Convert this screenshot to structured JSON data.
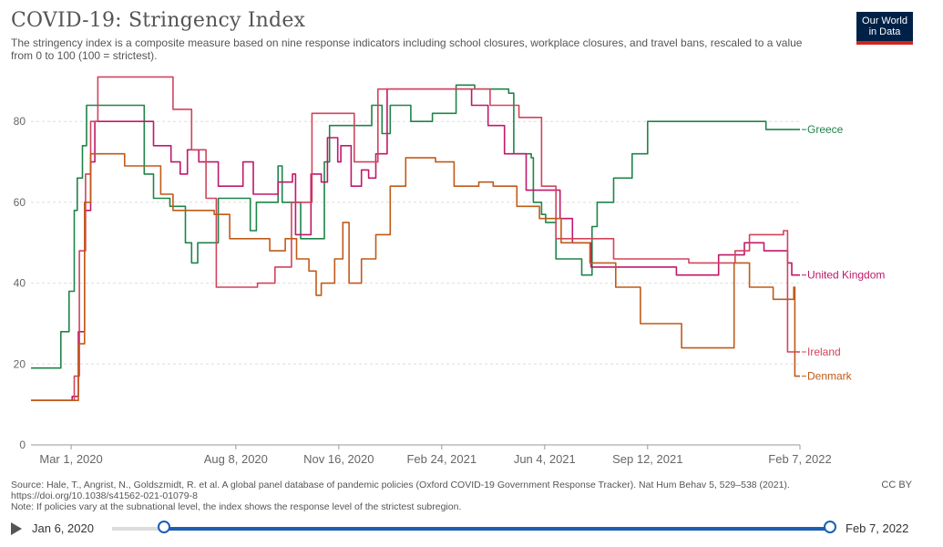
{
  "header": {
    "title": "COVID-19: Stringency Index",
    "subtitle": "The stringency index is a composite measure based on nine response indicators including school closures, workplace closures, and travel bans, rescaled to a value from 0 to 100 (100 = strictest).",
    "logo_line1": "Our World",
    "logo_line2": "in Data"
  },
  "chart_data": {
    "type": "line",
    "title": "COVID-19: Stringency Index",
    "xlabel": "",
    "ylabel": "",
    "x_ticks": [
      "Mar 1, 2020",
      "Aug 8, 2020",
      "Nov 16, 2020",
      "Feb 24, 2021",
      "Jun 4, 2021",
      "Sep 12, 2021",
      "Feb 7, 2022"
    ],
    "y_ticks": [
      0,
      20,
      40,
      60,
      80
    ],
    "xlim": [
      "2020-01-22",
      "2022-02-07"
    ],
    "ylim": [
      0,
      92
    ],
    "grid": "horizontal dashed",
    "legend": "inline labels at line ends (right)",
    "colors": {
      "Greece": "#1e8449",
      "United Kingdom": "#c0186a",
      "Ireland": "#d0445c",
      "Denmark": "#c05a18"
    },
    "series": [
      {
        "name": "Greece",
        "points": [
          [
            "2020-01-22",
            19
          ],
          [
            "2020-02-10",
            19
          ],
          [
            "2020-02-20",
            28
          ],
          [
            "2020-02-28",
            38
          ],
          [
            "2020-03-04",
            58
          ],
          [
            "2020-03-07",
            66
          ],
          [
            "2020-03-12",
            74
          ],
          [
            "2020-03-16",
            84
          ],
          [
            "2020-05-04",
            84
          ],
          [
            "2020-05-11",
            67
          ],
          [
            "2020-05-20",
            61
          ],
          [
            "2020-06-05",
            59
          ],
          [
            "2020-06-20",
            50
          ],
          [
            "2020-06-26",
            45
          ],
          [
            "2020-07-02",
            50
          ],
          [
            "2020-07-17",
            50
          ],
          [
            "2020-07-22",
            61
          ],
          [
            "2020-08-18",
            61
          ],
          [
            "2020-08-22",
            53
          ],
          [
            "2020-08-28",
            60
          ],
          [
            "2020-09-18",
            69
          ],
          [
            "2020-09-22",
            60
          ],
          [
            "2020-10-10",
            51
          ],
          [
            "2020-10-28",
            51
          ],
          [
            "2020-11-02",
            70
          ],
          [
            "2020-11-07",
            79
          ],
          [
            "2020-12-18",
            84
          ],
          [
            "2020-12-28",
            77
          ],
          [
            "2021-01-05",
            84
          ],
          [
            "2021-01-25",
            80
          ],
          [
            "2021-02-15",
            82
          ],
          [
            "2021-03-10",
            89
          ],
          [
            "2021-03-28",
            88
          ],
          [
            "2021-04-30",
            87
          ],
          [
            "2021-05-05",
            72
          ],
          [
            "2021-05-22",
            71
          ],
          [
            "2021-05-24",
            60
          ],
          [
            "2021-06-01",
            57
          ],
          [
            "2021-06-05",
            55
          ],
          [
            "2021-06-15",
            46
          ],
          [
            "2021-07-08",
            46
          ],
          [
            "2021-07-10",
            42
          ],
          [
            "2021-07-20",
            54
          ],
          [
            "2021-07-25",
            60
          ],
          [
            "2021-08-10",
            66
          ],
          [
            "2021-08-28",
            72
          ],
          [
            "2021-09-12",
            80
          ],
          [
            "2022-01-01",
            80
          ],
          [
            "2022-01-05",
            78
          ],
          [
            "2022-02-07",
            78
          ]
        ]
      },
      {
        "name": "United Kingdom",
        "points": [
          [
            "2020-01-22",
            11
          ],
          [
            "2020-02-20",
            11
          ],
          [
            "2020-03-02",
            12
          ],
          [
            "2020-03-08",
            28
          ],
          [
            "2020-03-14",
            58
          ],
          [
            "2020-03-20",
            70
          ],
          [
            "2020-03-24",
            80
          ],
          [
            "2020-05-13",
            80
          ],
          [
            "2020-05-20",
            74
          ],
          [
            "2020-06-06",
            70
          ],
          [
            "2020-06-15",
            67
          ],
          [
            "2020-06-22",
            73
          ],
          [
            "2020-07-03",
            70
          ],
          [
            "2020-07-22",
            64
          ],
          [
            "2020-08-15",
            70
          ],
          [
            "2020-08-25",
            62
          ],
          [
            "2020-09-05",
            62
          ],
          [
            "2020-09-18",
            65
          ],
          [
            "2020-10-02",
            67
          ],
          [
            "2020-10-05",
            52
          ],
          [
            "2020-10-20",
            67
          ],
          [
            "2020-10-30",
            65
          ],
          [
            "2020-11-05",
            76
          ],
          [
            "2020-11-15",
            70
          ],
          [
            "2020-11-18",
            74
          ],
          [
            "2020-11-28",
            64
          ],
          [
            "2020-12-08",
            68
          ],
          [
            "2020-12-15",
            66
          ],
          [
            "2020-12-22",
            72
          ],
          [
            "2021-01-02",
            88
          ],
          [
            "2021-03-25",
            84
          ],
          [
            "2021-04-10",
            79
          ],
          [
            "2021-04-26",
            72
          ],
          [
            "2021-05-17",
            63
          ],
          [
            "2021-06-19",
            56
          ],
          [
            "2021-07-01",
            50
          ],
          [
            "2021-07-19",
            44
          ],
          [
            "2021-10-10",
            42
          ],
          [
            "2021-11-20",
            47
          ],
          [
            "2021-12-15",
            50
          ],
          [
            "2022-01-03",
            48
          ],
          [
            "2022-01-20",
            48
          ],
          [
            "2022-01-26",
            45
          ],
          [
            "2022-01-30",
            42
          ],
          [
            "2022-02-07",
            42
          ]
        ]
      },
      {
        "name": "Ireland",
        "points": [
          [
            "2020-01-22",
            11
          ],
          [
            "2020-02-25",
            11
          ],
          [
            "2020-03-04",
            17
          ],
          [
            "2020-03-09",
            48
          ],
          [
            "2020-03-15",
            67
          ],
          [
            "2020-03-20",
            80
          ],
          [
            "2020-03-27",
            91
          ],
          [
            "2020-05-18",
            91
          ],
          [
            "2020-06-08",
            83
          ],
          [
            "2020-06-26",
            73
          ],
          [
            "2020-07-10",
            61
          ],
          [
            "2020-07-20",
            39
          ],
          [
            "2020-08-29",
            40
          ],
          [
            "2020-09-15",
            44
          ],
          [
            "2020-10-01",
            60
          ],
          [
            "2020-10-21",
            82
          ],
          [
            "2020-12-01",
            70
          ],
          [
            "2020-12-24",
            88
          ],
          [
            "2021-04-12",
            84
          ],
          [
            "2021-05-10",
            81
          ],
          [
            "2021-06-01",
            64
          ],
          [
            "2021-06-15",
            51
          ],
          [
            "2021-07-26",
            51
          ],
          [
            "2021-08-10",
            46
          ],
          [
            "2021-10-22",
            45
          ],
          [
            "2021-12-06",
            48
          ],
          [
            "2021-12-20",
            52
          ],
          [
            "2022-01-22",
            53
          ],
          [
            "2022-01-26",
            23
          ],
          [
            "2022-02-07",
            23
          ]
        ]
      },
      {
        "name": "Denmark",
        "points": [
          [
            "2020-01-22",
            11
          ],
          [
            "2020-02-25",
            11
          ],
          [
            "2020-03-08",
            25
          ],
          [
            "2020-03-14",
            60
          ],
          [
            "2020-03-20",
            72
          ],
          [
            "2020-04-15",
            72
          ],
          [
            "2020-04-22",
            69
          ],
          [
            "2020-05-27",
            62
          ],
          [
            "2020-06-08",
            58
          ],
          [
            "2020-07-18",
            57
          ],
          [
            "2020-08-02",
            51
          ],
          [
            "2020-09-10",
            48
          ],
          [
            "2020-09-25",
            51
          ],
          [
            "2020-10-06",
            46
          ],
          [
            "2020-10-18",
            43
          ],
          [
            "2020-10-25",
            37
          ],
          [
            "2020-10-30",
            40
          ],
          [
            "2020-11-12",
            46
          ],
          [
            "2020-11-20",
            55
          ],
          [
            "2020-11-26",
            40
          ],
          [
            "2020-12-08",
            46
          ],
          [
            "2020-12-22",
            52
          ],
          [
            "2021-01-05",
            64
          ],
          [
            "2021-01-20",
            71
          ],
          [
            "2021-02-18",
            70
          ],
          [
            "2021-03-08",
            64
          ],
          [
            "2021-04-01",
            65
          ],
          [
            "2021-04-15",
            64
          ],
          [
            "2021-05-08",
            59
          ],
          [
            "2021-05-30",
            56
          ],
          [
            "2021-06-20",
            50
          ],
          [
            "2021-07-18",
            45
          ],
          [
            "2021-08-12",
            39
          ],
          [
            "2021-09-05",
            30
          ],
          [
            "2021-10-15",
            24
          ],
          [
            "2021-12-05",
            45
          ],
          [
            "2021-12-20",
            39
          ],
          [
            "2022-01-02",
            39
          ],
          [
            "2022-01-12",
            36
          ],
          [
            "2022-02-01",
            39
          ],
          [
            "2022-02-02",
            17
          ],
          [
            "2022-02-07",
            17
          ]
        ]
      }
    ]
  },
  "footer": {
    "source": "Source: Hale, T., Angrist, N., Goldszmidt, R. et al. A global panel database of pandemic policies (Oxford COVID-19 Government Response Tracker). Nat Hum Behav 5, 529–538 (2021).",
    "doi": "https://doi.org/10.1038/s41562-021-01079-8",
    "note": "Note: If policies vary at the subnational level, the index shows the response level of the strictest subregion.",
    "license": "CC BY"
  },
  "timeline": {
    "start_label": "Jan 6, 2020",
    "end_label": "Feb 7, 2022"
  }
}
